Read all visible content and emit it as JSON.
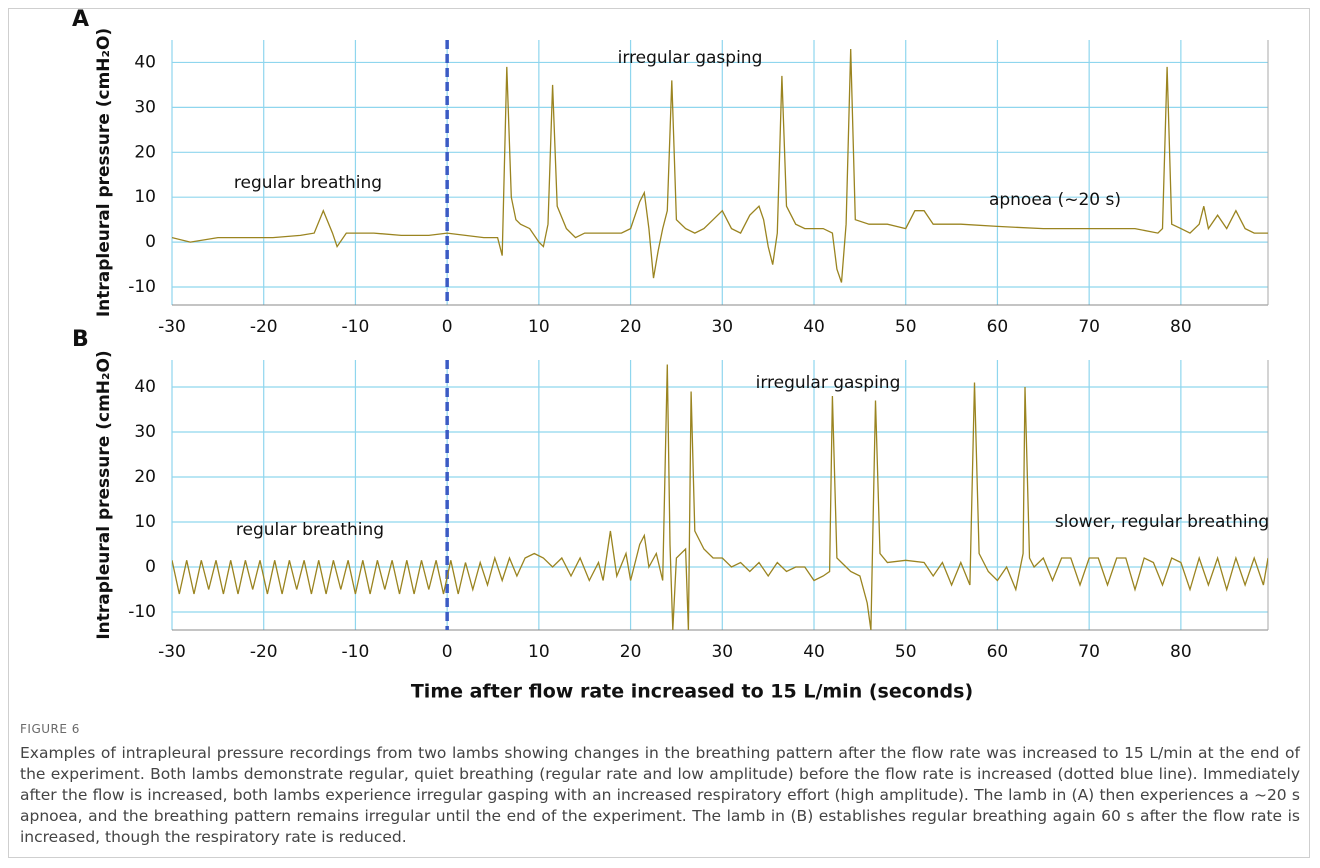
{
  "chart_data": [
    {
      "type": "line",
      "panel": "A",
      "y_label": "Intrapleural pressure (cmH₂O)",
      "color": "#9a8420",
      "xlim": [
        -30,
        89.5
      ],
      "ylim": [
        -14,
        45
      ],
      "xticks": [
        -30,
        -20,
        -10,
        0,
        10,
        20,
        30,
        40,
        50,
        60,
        70,
        80
      ],
      "yticks": [
        -10,
        0,
        10,
        20,
        30,
        40
      ],
      "grid": true,
      "vline": {
        "x": 0,
        "color": "#3b5bc4",
        "style": "dashed"
      },
      "annotations": [
        "regular breathing",
        "irregular gasping",
        "apnoea (~20 s)"
      ],
      "x": [
        -30,
        -28,
        -25,
        -22,
        -19,
        -16,
        -14.5,
        -13.5,
        -12.5,
        -12,
        -11,
        -8,
        -5,
        -2,
        0,
        2,
        4,
        5.5,
        6,
        6.5,
        7,
        7.5,
        8,
        9,
        10,
        10.5,
        11,
        11.5,
        12,
        13,
        14,
        15,
        17,
        19,
        20,
        21,
        21.5,
        22,
        22.5,
        23,
        23.5,
        24,
        24.5,
        25,
        26,
        27,
        28,
        29,
        30,
        31,
        32,
        33,
        34,
        34.5,
        35,
        35.5,
        36,
        36.5,
        37,
        38,
        39,
        40,
        41,
        42,
        42.5,
        43,
        43.5,
        44,
        44.5,
        46,
        48,
        50,
        51,
        52,
        53,
        56,
        60,
        65,
        70,
        75,
        77.5,
        78,
        78.5,
        79,
        80,
        81,
        82,
        82.5,
        83,
        84,
        85,
        86,
        87,
        88,
        89.5
      ],
      "values": [
        1,
        0,
        1,
        1,
        1,
        1.5,
        2,
        7,
        2,
        -1,
        2,
        2,
        1.5,
        1.5,
        2,
        1.5,
        1,
        1,
        -3,
        39,
        10,
        5,
        4,
        3,
        0,
        -1,
        4,
        35,
        8,
        3,
        1,
        2,
        2,
        2,
        3,
        9,
        11,
        3,
        -8,
        -2,
        3,
        7,
        36,
        5,
        3,
        2,
        3,
        5,
        7,
        3,
        2,
        6,
        8,
        5,
        -1,
        -5,
        2,
        37,
        8,
        4,
        3,
        3,
        3,
        2,
        -6,
        -9,
        4,
        43,
        5,
        4,
        4,
        3,
        7,
        7,
        4,
        4,
        3.5,
        3,
        3,
        3,
        2,
        3,
        39,
        4,
        3,
        2,
        4,
        8,
        3,
        6,
        3,
        7,
        3,
        2,
        2
      ]
    },
    {
      "type": "line",
      "panel": "B",
      "y_label": "Intrapleural pressure (cmH₂O)",
      "x_label": "Time after flow rate increased to 15 L/min (seconds)",
      "color": "#9a8420",
      "xlim": [
        -30,
        89.5
      ],
      "ylim": [
        -14,
        46
      ],
      "xticks": [
        -30,
        -20,
        -10,
        0,
        10,
        20,
        30,
        40,
        50,
        60,
        70,
        80
      ],
      "yticks": [
        -10,
        0,
        10,
        20,
        30,
        40
      ],
      "grid": true,
      "vline": {
        "x": 0,
        "color": "#3b5bc4",
        "style": "dashed"
      },
      "annotations": [
        "regular breathing",
        "irregular gasping",
        "slower, regular breathing"
      ],
      "x": [
        -30,
        -29.2,
        -28.4,
        -27.6,
        -26.8,
        -26,
        -25.2,
        -24.4,
        -23.6,
        -22.8,
        -22,
        -21.2,
        -20.4,
        -19.6,
        -18.8,
        -18,
        -17.2,
        -16.4,
        -15.6,
        -14.8,
        -14,
        -13.2,
        -12.4,
        -11.6,
        -10.8,
        -10,
        -9.2,
        -8.4,
        -7.6,
        -6.8,
        -6,
        -5.2,
        -4.4,
        -3.6,
        -2.8,
        -2,
        -1.2,
        -0.4,
        0.4,
        1.2,
        2,
        2.8,
        3.6,
        4.4,
        5.2,
        6,
        6.8,
        7.6,
        8.5,
        9.5,
        10.5,
        11.5,
        12.5,
        13.5,
        14.5,
        15.5,
        16.5,
        17,
        17.8,
        18.5,
        19.5,
        20,
        21,
        21.5,
        22,
        22.8,
        23.5,
        24,
        24.3,
        24.6,
        25,
        26,
        26.3,
        26.6,
        27,
        28,
        29,
        30,
        31,
        32,
        33,
        34,
        35,
        36,
        37,
        38,
        39,
        40,
        41,
        41.7,
        42,
        42.5,
        43,
        44,
        45,
        45.8,
        46.2,
        46.7,
        47.2,
        48,
        50,
        52,
        53,
        54,
        55,
        56,
        57,
        57.5,
        58,
        59,
        60,
        61,
        62,
        62.8,
        63,
        63.5,
        64,
        65,
        66,
        67,
        68,
        69,
        70,
        71,
        72,
        73,
        74,
        75,
        76,
        77,
        78,
        79,
        80,
        81,
        82,
        83,
        84,
        85,
        86,
        87,
        88,
        89,
        89.5
      ],
      "values": [
        1.5,
        -6,
        1.5,
        -6,
        1.5,
        -5,
        1.5,
        -6,
        1.5,
        -6,
        1.5,
        -5,
        1.5,
        -6,
        1.5,
        -6,
        1.5,
        -5,
        1.5,
        -6,
        1.5,
        -6,
        1.5,
        -5,
        1.5,
        -6,
        1.5,
        -6,
        1.5,
        -5,
        1.5,
        -6,
        1.5,
        -6,
        1.5,
        -5,
        1.5,
        -6,
        1.5,
        -6,
        1,
        -5,
        1,
        -4,
        2,
        -3,
        2,
        -2,
        2,
        3,
        2,
        0,
        2,
        -2,
        2,
        -3,
        1,
        -3,
        8,
        -2,
        3,
        -3,
        5,
        7,
        0,
        3,
        -3,
        45,
        5,
        -14,
        2,
        4,
        -14,
        39,
        8,
        4,
        2,
        2,
        0,
        1,
        -1,
        1,
        -2,
        1,
        -1,
        0,
        0,
        -3,
        -2,
        -1,
        38,
        2,
        1,
        -1,
        -2,
        -8,
        -14,
        37,
        3,
        1,
        1.5,
        1,
        -2,
        1,
        -4,
        1,
        -4,
        41,
        3,
        -1,
        -3,
        0,
        -5,
        3,
        40,
        2,
        0,
        2,
        -3,
        2,
        2,
        -4,
        2,
        2,
        -4,
        2,
        2,
        -5,
        2,
        1,
        -4,
        2,
        1,
        -5,
        2,
        -4,
        2,
        -5,
        2,
        -4,
        2,
        -4,
        2
      ]
    }
  ],
  "figure": {
    "label": "FIGURE 6",
    "caption": "Examples of intrapleural pressure recordings from two lambs showing changes in the breathing pattern after the flow rate was increased to 15 L/min at the end of the experiment. Both lambs demonstrate regular, quiet breathing (regular rate and low amplitude) before the flow rate is increased (dotted blue line). Immediately after the flow is increased, both lambs experience irregular gasping with an increased respiratory effort (high amplitude). The lamb in (A) then experiences a ~20 s apnoea, and the breathing pattern remains irregular until the end of the experiment. The lamb in (B) establishes regular breathing again 60 s after the flow rate is increased, though the respiratory rate is reduced."
  }
}
